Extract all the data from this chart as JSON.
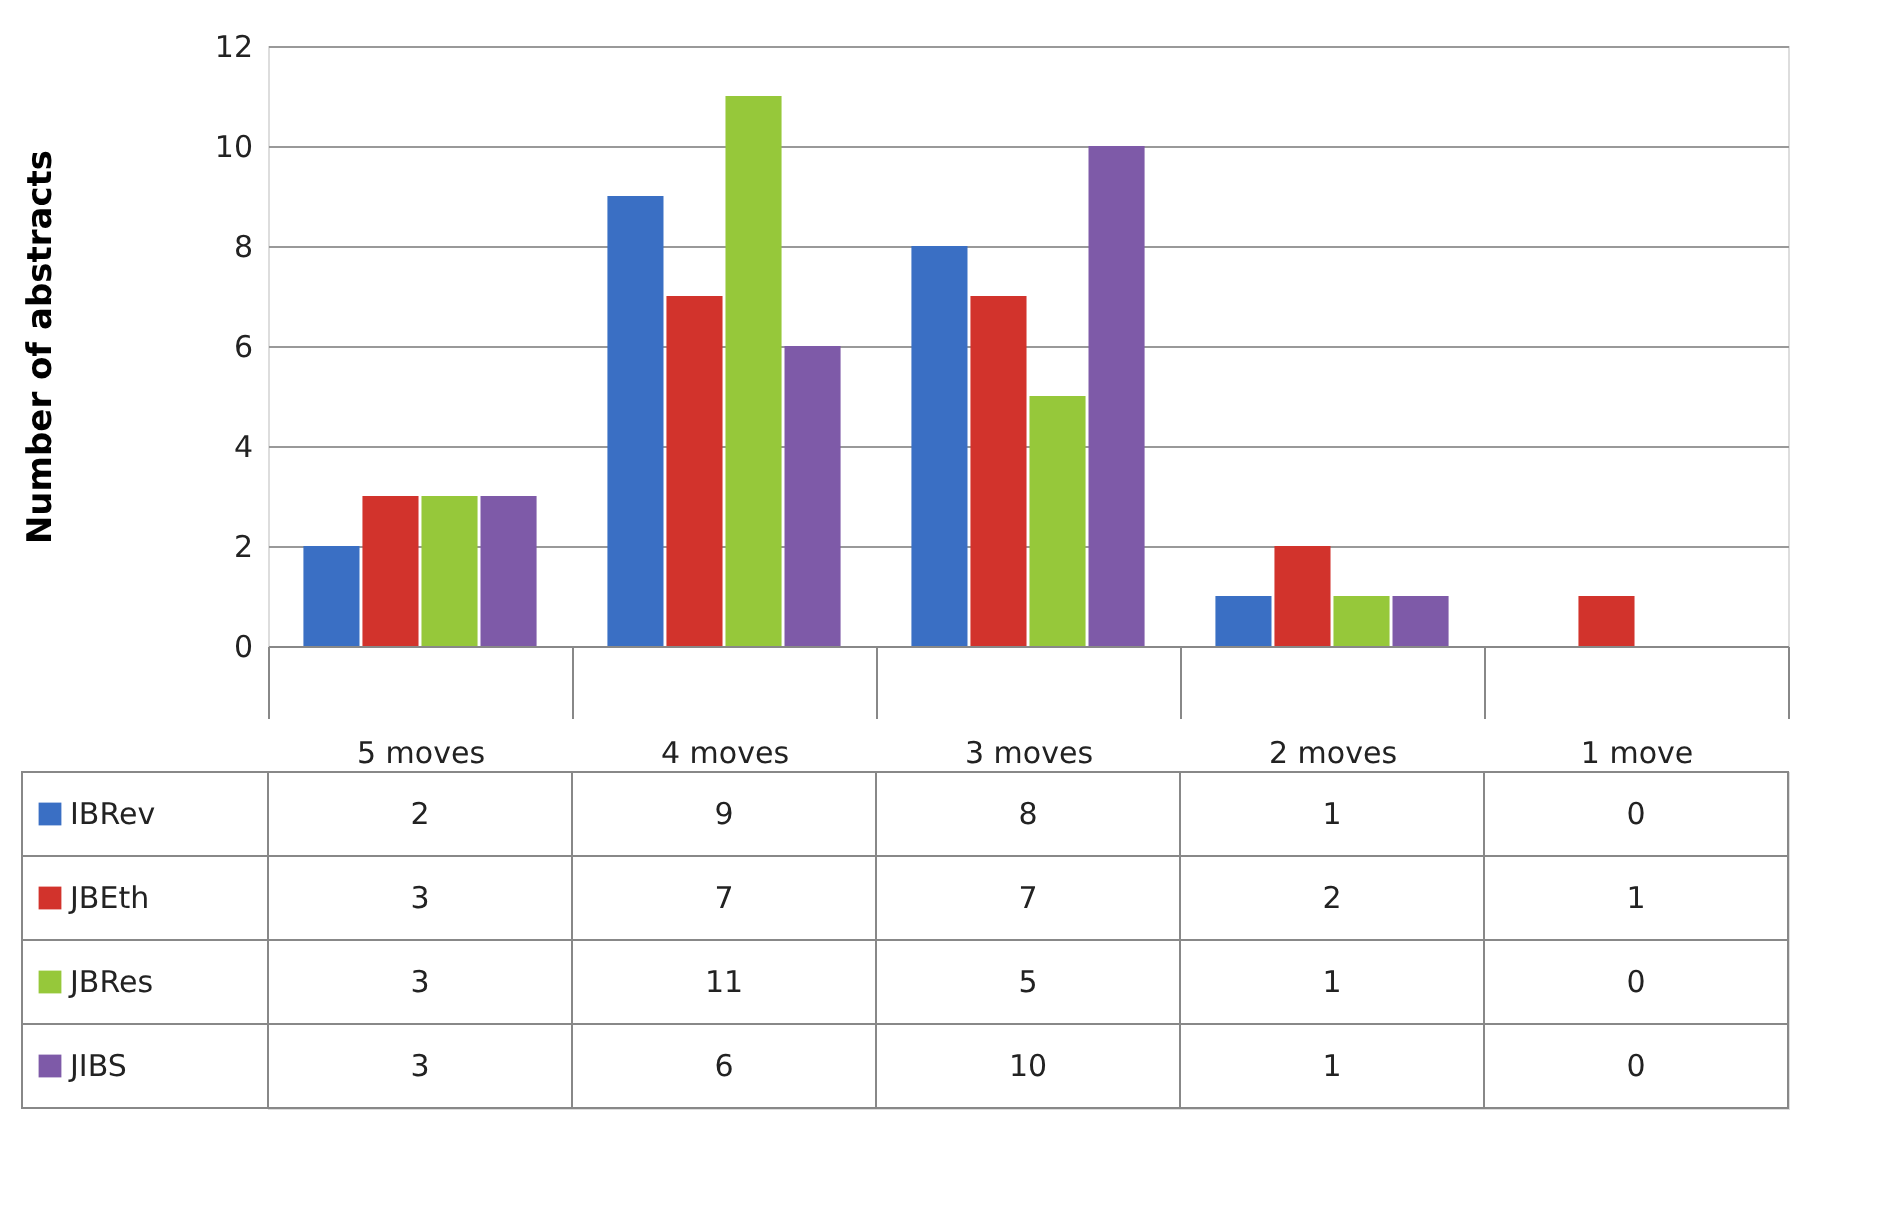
{
  "chart_data": {
    "type": "bar",
    "ylabel": "Number of abstracts",
    "categories": [
      "5 moves",
      "4 moves",
      "3 moves",
      "2 moves",
      "1 move"
    ],
    "series": [
      {
        "name": "IBRev",
        "color": "#3a6fc4",
        "values": [
          2,
          9,
          8,
          1,
          0
        ]
      },
      {
        "name": "JBEth",
        "color": "#d2332c",
        "values": [
          3,
          7,
          7,
          2,
          1
        ]
      },
      {
        "name": "JBRes",
        "color": "#96c83a",
        "values": [
          3,
          11,
          5,
          1,
          0
        ]
      },
      {
        "name": "JIBS",
        "color": "#7e5aa8",
        "values": [
          3,
          6,
          10,
          1,
          0
        ]
      }
    ],
    "ylim": [
      0,
      12
    ],
    "yticks": [
      0,
      2,
      4,
      6,
      8,
      10,
      12
    ],
    "grid": "y",
    "legend": "bottom",
    "data_labels": true
  }
}
